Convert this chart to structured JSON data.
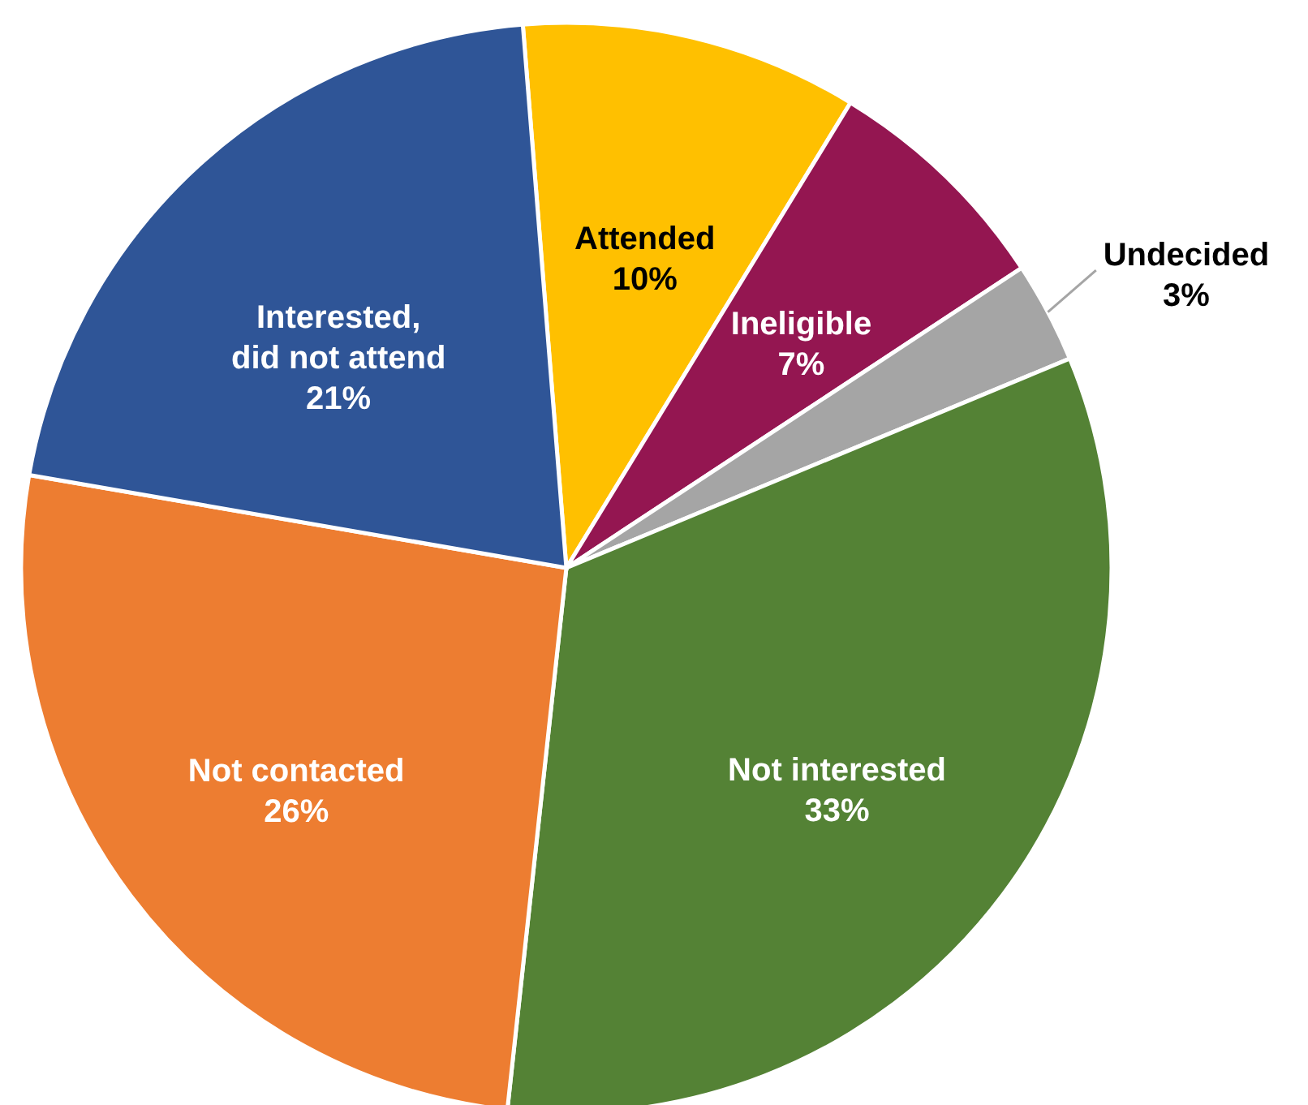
{
  "chart_data": {
    "type": "pie",
    "categories": [
      "Attended",
      "Ineligible",
      "Undecided",
      "Not interested",
      "Not contacted",
      "Interested, did not attend"
    ],
    "values": [
      10,
      7,
      3,
      33,
      26,
      21
    ],
    "colors": [
      "#ffc000",
      "#941651",
      "#a5a5a5",
      "#548235",
      "#ed7d31",
      "#2f5597"
    ],
    "value_labels": [
      "10%",
      "7%",
      "3%",
      "33%",
      "26%",
      "21%"
    ]
  }
}
